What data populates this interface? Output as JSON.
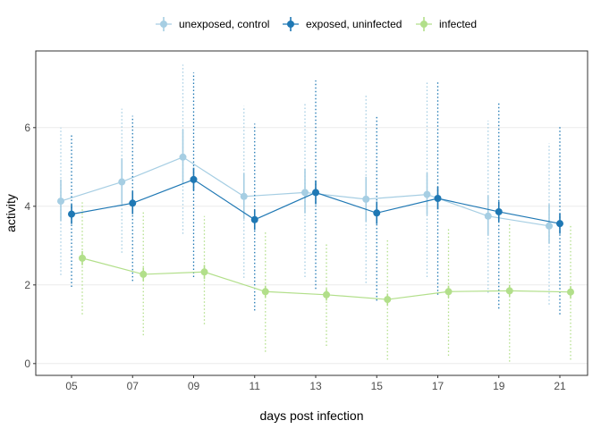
{
  "chart_data": {
    "type": "line",
    "xlabel": "days post infection",
    "ylabel": "activity",
    "ylim": [
      -0.3,
      7.95
    ],
    "yticks": [
      0,
      2,
      4,
      6
    ],
    "categories": [
      "05",
      "07",
      "09",
      "11",
      "13",
      "15",
      "17",
      "19",
      "21"
    ],
    "grid": "horizontal",
    "legend_position": "top",
    "error_bars": "mean ± SE (solid) and ± SD (dotted)",
    "series": [
      {
        "name": "unexposed, control",
        "color": "#a6cee3",
        "values": [
          4.13,
          4.62,
          5.25,
          4.25,
          4.35,
          4.18,
          4.3,
          3.75,
          3.5
        ],
        "se_low": [
          3.63,
          4.05,
          4.58,
          3.68,
          3.82,
          3.6,
          3.78,
          3.25,
          3.05
        ],
        "se_high": [
          4.68,
          5.22,
          5.95,
          4.85,
          4.95,
          4.75,
          4.85,
          4.28,
          4.05
        ],
        "sd_low": [
          2.25,
          2.82,
          3.3,
          2.18,
          2.2,
          2.05,
          2.2,
          1.8,
          1.5
        ],
        "sd_high": [
          6.0,
          6.48,
          7.6,
          6.55,
          6.62,
          6.85,
          7.18,
          6.18,
          5.6
        ]
      },
      {
        "name": "exposed, uninfected",
        "color": "#1f78b4",
        "values": [
          3.8,
          4.08,
          4.68,
          3.66,
          4.35,
          3.83,
          4.2,
          3.86,
          3.56
        ],
        "se_low": [
          3.55,
          3.8,
          4.4,
          3.4,
          4.05,
          3.55,
          3.92,
          3.6,
          3.3
        ],
        "se_high": [
          4.05,
          4.38,
          4.98,
          3.92,
          4.65,
          4.12,
          4.5,
          4.12,
          3.82
        ],
        "sd_low": [
          1.95,
          2.1,
          2.2,
          1.35,
          1.9,
          1.6,
          1.75,
          1.4,
          1.25
        ],
        "sd_high": [
          5.85,
          6.3,
          7.4,
          6.1,
          7.2,
          6.3,
          7.15,
          6.65,
          6.05
        ]
      },
      {
        "name": "infected",
        "color": "#b2df8a",
        "values": [
          2.68,
          2.27,
          2.33,
          1.83,
          1.75,
          1.63,
          1.83,
          1.85,
          1.82
        ],
        "se_low": [
          2.5,
          2.1,
          2.15,
          1.68,
          1.6,
          1.48,
          1.68,
          1.7,
          1.67
        ],
        "se_high": [
          2.86,
          2.44,
          2.51,
          1.98,
          1.9,
          1.78,
          1.98,
          2.0,
          1.97
        ],
        "sd_low": [
          1.25,
          0.72,
          1.0,
          0.3,
          0.45,
          0.1,
          0.2,
          0.05,
          0.1
        ],
        "sd_high": [
          4.1,
          3.85,
          3.75,
          3.35,
          3.05,
          3.15,
          3.45,
          3.6,
          3.55
        ]
      }
    ]
  }
}
